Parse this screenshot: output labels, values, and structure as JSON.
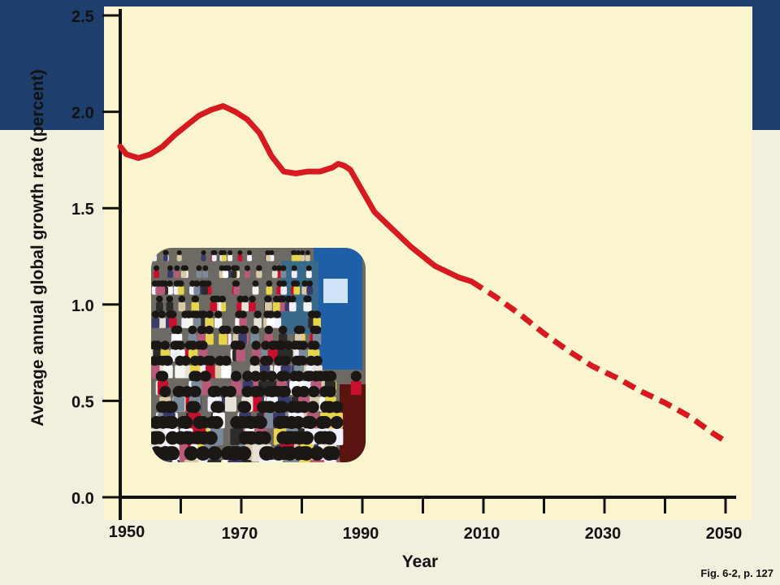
{
  "chart_data": {
    "type": "line",
    "xlabel": "Year",
    "ylabel": "Average annual global growth rate (percent)",
    "x_ticks": [
      "1950",
      "1970",
      "1990",
      "2010",
      "2030",
      "2050"
    ],
    "y_ticks": [
      "0.0",
      "0.5",
      "1.0",
      "1.5",
      "2.0",
      "2.5"
    ],
    "xlim": [
      1950,
      2050
    ],
    "ylim": [
      0,
      2.5
    ],
    "line_color": "#d71920",
    "plot_background": "#fbf5cf",
    "series": [
      {
        "style": "solid",
        "x": [
          1950,
          1951,
          1953,
          1955,
          1957,
          1959,
          1961,
          1963,
          1965,
          1967,
          1969,
          1971,
          1973,
          1975,
          1977,
          1979,
          1981,
          1983,
          1985,
          1986,
          1987,
          1988,
          1990,
          1992,
          1994,
          1996,
          1998,
          2000,
          2002,
          2004,
          2006,
          2008
        ],
        "y": [
          1.82,
          1.78,
          1.76,
          1.78,
          1.82,
          1.88,
          1.93,
          1.98,
          2.01,
          2.03,
          2.0,
          1.96,
          1.89,
          1.77,
          1.69,
          1.68,
          1.69,
          1.69,
          1.71,
          1.73,
          1.72,
          1.7,
          1.59,
          1.48,
          1.42,
          1.36,
          1.3,
          1.25,
          1.2,
          1.17,
          1.14,
          1.12
        ]
      },
      {
        "style": "dashed",
        "x": [
          2008,
          2012,
          2016,
          2020,
          2024,
          2028,
          2032,
          2036,
          2040,
          2044,
          2048,
          2050
        ],
        "y": [
          1.12,
          1.04,
          0.95,
          0.85,
          0.76,
          0.68,
          0.62,
          0.55,
          0.49,
          0.42,
          0.33,
          0.29
        ]
      }
    ]
  },
  "figure_ref": "Fig. 6-2, p. 127",
  "photo": {
    "icon": "crowd-photo",
    "ad_panel_color": "#1f5fa8",
    "sign_color": "#5a1410"
  },
  "theme": {
    "header_band": "#1e3f6e",
    "slide_background": "#f2efdf",
    "axis_color": "#111111"
  }
}
